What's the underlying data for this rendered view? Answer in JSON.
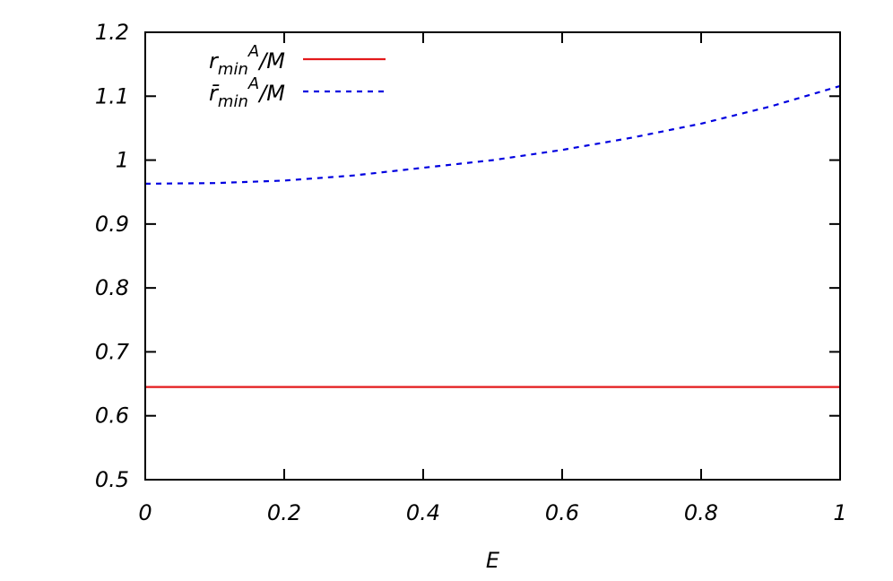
{
  "chart_data": {
    "type": "line",
    "xlabel": "E",
    "ylabel": "",
    "xlim": [
      0,
      1
    ],
    "ylim": [
      0.5,
      1.2
    ],
    "xticks": [
      0,
      0.2,
      0.4,
      0.6,
      0.8,
      1
    ],
    "xtick_labels": [
      "0",
      "0.2",
      "0.4",
      "0.6",
      "0.8",
      "1"
    ],
    "yticks": [
      0.5,
      0.6,
      0.7,
      0.8,
      0.9,
      1.0,
      1.1,
      1.2
    ],
    "ytick_labels": [
      "0.5",
      "0.6",
      "0.7",
      "0.8",
      "0.9",
      "1",
      "1.1",
      "1.2"
    ],
    "grid": false,
    "legend_position": "top-left",
    "series": [
      {
        "name": "r_min^A/M",
        "legend": {
          "base": "r",
          "sub": "min",
          "sup": "A",
          "tail": "/M"
        },
        "color": "#e31a1c",
        "style": "solid",
        "x": [
          0,
          0.1,
          0.2,
          0.3,
          0.4,
          0.5,
          0.6,
          0.7,
          0.8,
          0.9,
          1.0
        ],
        "y": [
          0.645,
          0.645,
          0.645,
          0.645,
          0.645,
          0.645,
          0.645,
          0.645,
          0.645,
          0.645,
          0.645
        ]
      },
      {
        "name": "r̄_min^A/M",
        "legend": {
          "base": "r̄",
          "sub": "min",
          "sup": "A",
          "tail": "/M"
        },
        "color": "#0000e0",
        "style": "dashed",
        "x": [
          0,
          0.1,
          0.2,
          0.3,
          0.4,
          0.5,
          0.6,
          0.7,
          0.8,
          0.9,
          1.0
        ],
        "y": [
          0.963,
          0.964,
          0.968,
          0.976,
          0.988,
          1.0,
          1.016,
          1.035,
          1.057,
          1.084,
          1.116
        ]
      }
    ]
  }
}
